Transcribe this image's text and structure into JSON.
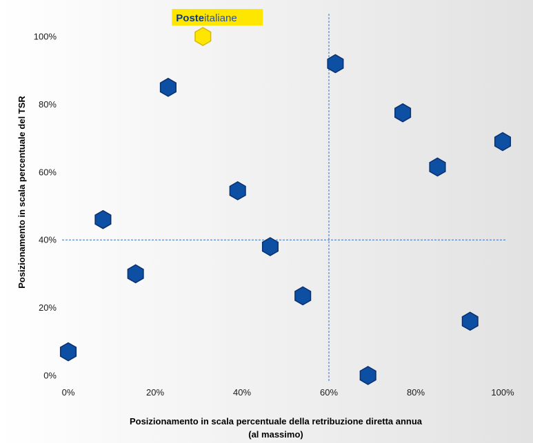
{
  "chart_data": {
    "type": "scatter",
    "xlabel_line1": "Posizionamento  in scala  percentuale della retribuzione diretta annua",
    "xlabel_line2": "(al massimo)",
    "ylabel": "Posizionamento in scala percentuale del TSR",
    "xlim": [
      0,
      100
    ],
    "ylim": [
      0,
      100
    ],
    "x_ticks": [
      "0%",
      "20%",
      "40%",
      "60%",
      "80%",
      "100%"
    ],
    "y_ticks": [
      "0%",
      "20%",
      "40%",
      "60%",
      "80%",
      "100%"
    ],
    "grid": false,
    "reference_lines": {
      "x": 60,
      "y": 40
    },
    "series": [
      {
        "points": [
          {
            "x": 0,
            "y": 7
          },
          {
            "x": 8,
            "y": 46
          },
          {
            "x": 15.5,
            "y": 30
          },
          {
            "x": 23,
            "y": 85
          },
          {
            "x": 39,
            "y": 54.5
          },
          {
            "x": 46.5,
            "y": 38
          },
          {
            "x": 54,
            "y": 23.5
          },
          {
            "x": 61.5,
            "y": 92
          },
          {
            "x": 69,
            "y": 0
          },
          {
            "x": 77,
            "y": 77.5
          },
          {
            "x": 85,
            "y": 61.5
          },
          {
            "x": 92.5,
            "y": 16
          },
          {
            "x": 100,
            "y": 69
          }
        ]
      },
      {
        "highlight": true,
        "points": [
          {
            "x": 31,
            "y": 100
          }
        ]
      }
    ],
    "highlight_label": {
      "bold": "Poste",
      "regular": "italiane"
    }
  },
  "colors": {
    "peer_fill": "#0d4fa3",
    "peer_stroke": "#0a2f6e",
    "highlight_fill": "#ffe600",
    "highlight_stroke": "#d4b800",
    "reference_line": "#2e6fbf",
    "logo_bg": "#ffe600",
    "logo_bold": "#0b3a8c",
    "logo_regular": "#2a4fa0",
    "background_start": "#ffffff",
    "background_end": "#e2e2e2"
  },
  "marker_shape": "hexagon"
}
